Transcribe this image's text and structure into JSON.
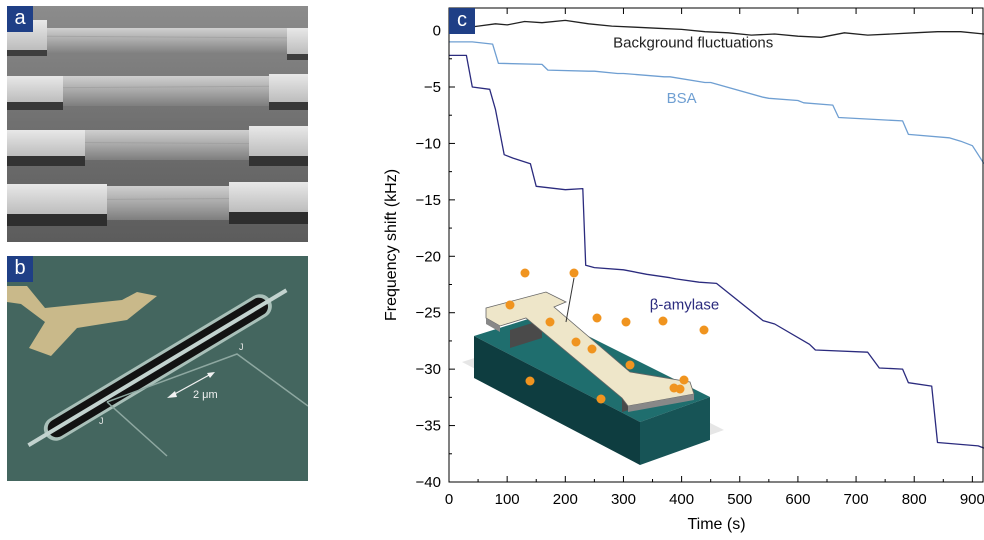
{
  "panels": {
    "a": {
      "label": "a"
    },
    "b": {
      "label": "b",
      "scale_label": "2 μm",
      "junction_label": "J"
    },
    "c": {
      "label": "c"
    }
  },
  "chart_data": {
    "type": "line",
    "title": "",
    "xlabel": "Time (s)",
    "ylabel": "Frequency shift (kHz)",
    "xlim": [
      0,
      920
    ],
    "ylim": [
      -40,
      2
    ],
    "xticks": [
      0,
      100,
      200,
      300,
      400,
      500,
      600,
      700,
      800,
      900
    ],
    "yticks": [
      0,
      -5,
      -10,
      -15,
      -20,
      -25,
      -30,
      -35,
      -40
    ],
    "grid": false,
    "series": [
      {
        "name": "Background fluctuations",
        "color": "#222222",
        "x": [
          0,
          20,
          50,
          80,
          100,
          130,
          160,
          200,
          240,
          280,
          320,
          360,
          400,
          440,
          480,
          520,
          560,
          600,
          640,
          680,
          720,
          760,
          800,
          840,
          880,
          920
        ],
        "y": [
          0,
          0.2,
          0.4,
          0.6,
          0.5,
          0.8,
          0.7,
          0.9,
          0.6,
          0.4,
          0.3,
          0.2,
          0.1,
          -0.1,
          -0.2,
          -0.4,
          -0.3,
          -0.5,
          -0.6,
          -0.2,
          -0.4,
          -0.3,
          -0.2,
          -0.1,
          -0.1,
          -0.3
        ]
      },
      {
        "name": "BSA",
        "color": "#6f9fd2",
        "x": [
          0,
          40,
          75,
          85,
          160,
          170,
          240,
          250,
          290,
          300,
          370,
          380,
          440,
          450,
          540,
          550,
          600,
          610,
          660,
          670,
          780,
          790,
          860,
          880,
          900,
          920
        ],
        "y": [
          -1.0,
          -1.0,
          -1.2,
          -2.9,
          -3.0,
          -3.5,
          -3.6,
          -3.6,
          -3.8,
          -3.8,
          -4.1,
          -4.1,
          -4.6,
          -4.6,
          -5.9,
          -6.0,
          -6.2,
          -6.4,
          -6.6,
          -7.7,
          -8.0,
          -9.2,
          -9.5,
          -9.8,
          -10.2,
          -11.8
        ]
      },
      {
        "name": "β-amylase",
        "color": "#2b2b7e",
        "x": [
          0,
          30,
          40,
          70,
          80,
          95,
          110,
          140,
          150,
          200,
          230,
          235,
          250,
          300,
          340,
          380,
          390,
          430,
          460,
          540,
          560,
          620,
          630,
          720,
          740,
          780,
          790,
          830,
          840,
          910,
          920
        ],
        "y": [
          -2.2,
          -2.2,
          -5.0,
          -5.2,
          -7.0,
          -11.0,
          -11.3,
          -11.8,
          -13.8,
          -14.1,
          -14.0,
          -20.8,
          -21.0,
          -21.2,
          -21.6,
          -21.9,
          -22.0,
          -22.3,
          -22.4,
          -25.7,
          -26.0,
          -27.8,
          -28.3,
          -28.5,
          -29.9,
          -30.0,
          -31.2,
          -31.5,
          -36.5,
          -36.8,
          -37.0
        ]
      }
    ],
    "annotations": [
      {
        "text": "Background fluctuations",
        "x": 420,
        "y": -1.5
      },
      {
        "text": "BSA",
        "x": 400,
        "y": -6.4
      },
      {
        "text": "β-amylase",
        "x": 405,
        "y": -24.7
      }
    ]
  }
}
